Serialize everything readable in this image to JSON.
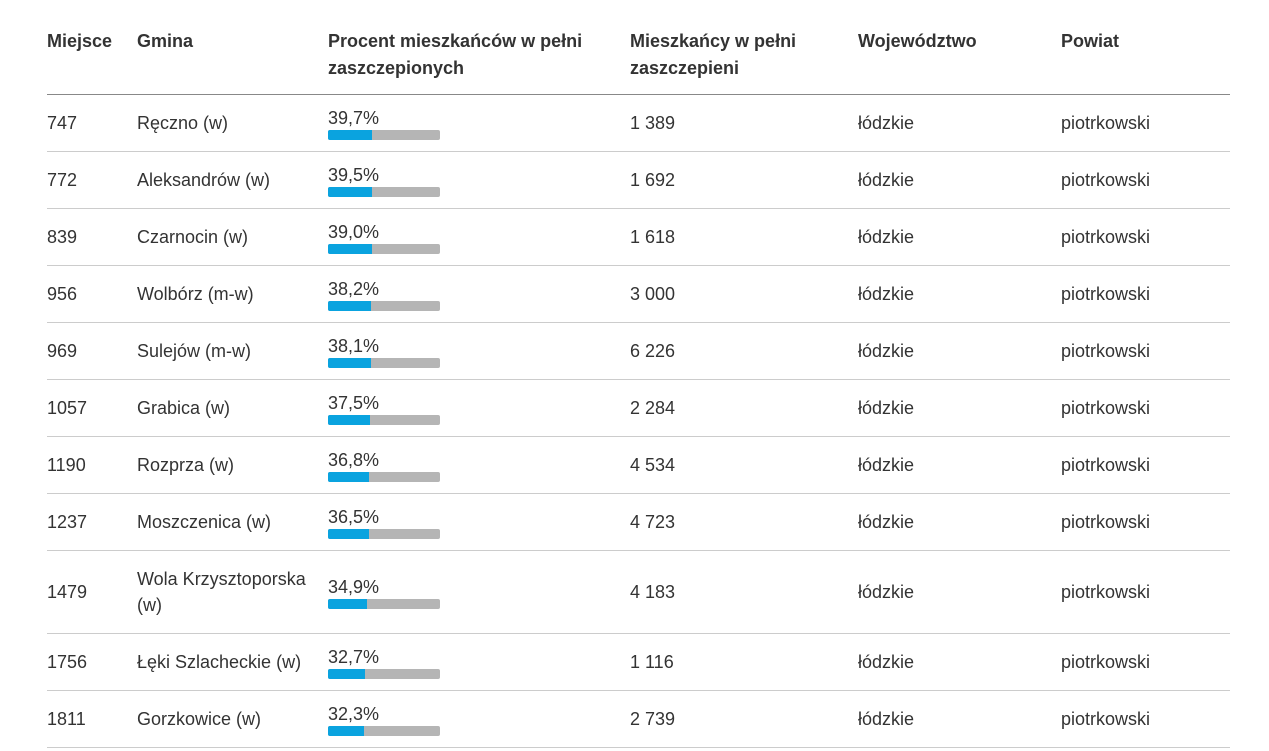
{
  "table": {
    "header": [
      "Miejsce",
      "Gmina",
      "Procent mieszkańców w pełni zaszczepionych",
      "Mieszkańcy w pełni zaszczepieni",
      "Województwo",
      "Powiat"
    ],
    "bar_xlim": [
      0,
      100
    ],
    "rows": [
      [
        747,
        "Ręczno (w)",
        {
          "value": 39.7,
          "label": "39,7%"
        },
        "1 389",
        "łódzkie",
        "piotrkowski"
      ],
      [
        772,
        "Aleksandrów (w)",
        {
          "value": 39.5,
          "label": "39,5%"
        },
        "1 692",
        "łódzkie",
        "piotrkowski"
      ],
      [
        839,
        "Czarnocin (w)",
        {
          "value": 39.0,
          "label": "39,0%"
        },
        "1 618",
        "łódzkie",
        "piotrkowski"
      ],
      [
        956,
        "Wolbórz (m-w)",
        {
          "value": 38.2,
          "label": "38,2%"
        },
        "3 000",
        "łódzkie",
        "piotrkowski"
      ],
      [
        969,
        "Sulejów (m-w)",
        {
          "value": 38.1,
          "label": "38,1%"
        },
        "6 226",
        "łódzkie",
        "piotrkowski"
      ],
      [
        1057,
        "Grabica (w)",
        {
          "value": 37.5,
          "label": "37,5%"
        },
        "2 284",
        "łódzkie",
        "piotrkowski"
      ],
      [
        1190,
        "Rozprza (w)",
        {
          "value": 36.8,
          "label": "36,8%"
        },
        "4 534",
        "łódzkie",
        "piotrkowski"
      ],
      [
        1237,
        "Moszczenica (w)",
        {
          "value": 36.5,
          "label": "36,5%"
        },
        "4 723",
        "łódzkie",
        "piotrkowski"
      ],
      [
        1479,
        "Wola Krzysztoporska (w)",
        {
          "value": 34.9,
          "label": "34,9%"
        },
        "4 183",
        "łódzkie",
        "piotrkowski"
      ],
      [
        1756,
        "Łęki Szlacheckie (w)",
        {
          "value": 32.7,
          "label": "32,7%"
        },
        "1 116",
        "łódzkie",
        "piotrkowski"
      ],
      [
        1811,
        "Gorzkowice (w)",
        {
          "value": 32.3,
          "label": "32,3%"
        },
        "2 739",
        "łódzkie",
        "piotrkowski"
      ]
    ]
  }
}
